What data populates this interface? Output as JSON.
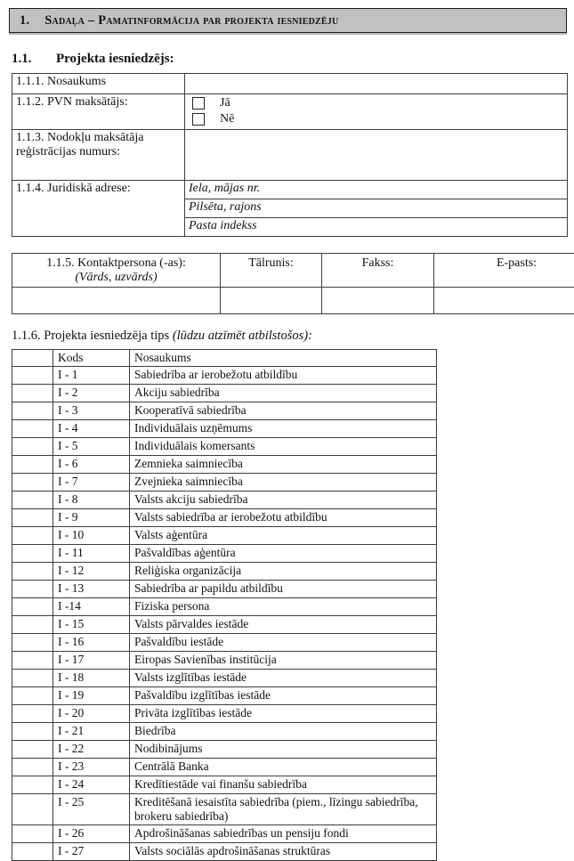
{
  "colors": {
    "header_bg": "#c1c1c1",
    "border": "#3d3d3d",
    "text": "#111111"
  },
  "section_header": {
    "number": "1.",
    "title": "Sadaļa – Pamatinformācija par projekta iesniedzēju"
  },
  "subsection": {
    "number": "1.1.",
    "title": "Projekta iesniedzējs:"
  },
  "applicant_table": {
    "row_name": {
      "label": "1.1.1. Nosaukums",
      "value": ""
    },
    "row_vat": {
      "label": "1.1.2. PVN maksātājs:",
      "option_yes": "Jā",
      "option_no": "Nē"
    },
    "row_taxreg": {
      "label": "1.1.3. Nodokļu maksātāja reģistrācijas numurs:",
      "value": ""
    },
    "row_address": {
      "label": "1.1.4. Juridiskā adrese:",
      "sublabels": [
        "Iela, mājas nr.",
        "Pilsēta, rajons",
        "Pasta indekss"
      ]
    }
  },
  "contact_table": {
    "header": {
      "contact_line1": "1.1.5. Kontaktpersona (-as):",
      "contact_line2": "(Vārds, uzvārds)",
      "phone": "Tālrunis:",
      "fax": "Fakss:",
      "email": "E-pasts:"
    },
    "values": {
      "contact": "",
      "phone": "",
      "fax": "",
      "email": ""
    }
  },
  "type_section": {
    "number": "1.1.6.",
    "title": "Projekta iesniedzēja tips",
    "note": "(lūdzu atzīmēt atbilstošos):"
  },
  "type_table": {
    "columns": {
      "mark": "",
      "code": "Kods",
      "name": "Nosaukums"
    },
    "rows": [
      {
        "code": "I - 1",
        "name": "Sabiedrība ar ierobežotu atbildību"
      },
      {
        "code": "I - 2",
        "name": "Akciju sabiedrība"
      },
      {
        "code": "I - 3",
        "name": "Kooperatīvā sabiedrība"
      },
      {
        "code": "I - 4",
        "name": "Individuālais uzņēmums"
      },
      {
        "code": "I - 5",
        "name": "Individuālais komersants"
      },
      {
        "code": "I - 6",
        "name": "Zemnieka saimniecība"
      },
      {
        "code": "I - 7",
        "name": "Zvejnieka saimniecība"
      },
      {
        "code": "I - 8",
        "name": "Valsts akciju sabiedrība"
      },
      {
        "code": "I - 9",
        "name": "Valsts sabiedrība ar ierobežotu atbildību"
      },
      {
        "code": "I - 10",
        "name": "Valsts aģentūra"
      },
      {
        "code": "I - 11",
        "name": "Pašvaldības aģentūra"
      },
      {
        "code": "I - 12",
        "name": "Reliģiska organizācija"
      },
      {
        "code": "I - 13",
        "name": "Sabiedrība ar papildu atbildību"
      },
      {
        "code": "I -14",
        "name": "Fiziska persona"
      },
      {
        "code": "I - 15",
        "name": "Valsts pārvaldes iestāde"
      },
      {
        "code": "I - 16",
        "name": "Pašvaldību iestāde"
      },
      {
        "code": "I - 17",
        "name": "Eiropas Savienības institūcija"
      },
      {
        "code": "I - 18",
        "name": "Valsts izglītības iestāde"
      },
      {
        "code": "I - 19",
        "name": "Pašvaldību izglītības iestāde"
      },
      {
        "code": "I - 20",
        "name": "Privāta izglītības iestāde"
      },
      {
        "code": "I - 21",
        "name": "Biedrība"
      },
      {
        "code": "I - 22",
        "name": "Nodibinājums"
      },
      {
        "code": "I - 23",
        "name": "Centrālā Banka"
      },
      {
        "code": "I - 24",
        "name": "Kredītiestāde vai finanšu sabiedrība"
      },
      {
        "code": "I - 25",
        "name": "Kreditēšanā iesaistīta sabiedrība (piem., līzingu sabiedrība, brokeru sabiedrība)"
      },
      {
        "code": "I - 26",
        "name": "Apdrošināšanas sabiedrības un pensiju fondi"
      },
      {
        "code": "I - 27",
        "name": "Valsts sociālās apdrošināšanas struktūras"
      }
    ]
  }
}
